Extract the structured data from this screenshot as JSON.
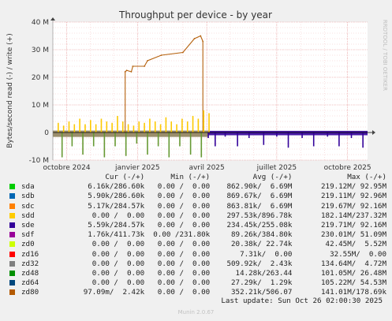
{
  "chart_data": {
    "type": "line",
    "title": "Throughput per device - by year",
    "ylabel": "Bytes/second read (-) / write (+)",
    "side_label": "RRDTOOL / TOBI OETIKER",
    "ylim": [
      -10,
      40
    ],
    "yticks": [
      -10,
      0,
      10,
      20,
      30,
      40
    ],
    "ytick_labels": [
      "-10 M",
      "0",
      "10 M",
      "20 M",
      "30 M",
      "40 M"
    ],
    "xlim": [
      "2024-09-13",
      "2025-10-27"
    ],
    "xticks": [
      "2024-10-01",
      "2025-01-01",
      "2025-04-01",
      "2025-07-01",
      "2025-10-01"
    ],
    "xtick_labels": [
      "octobre 2024",
      "janvier 2025",
      "avril 2025",
      "juillet 2025",
      "octobre 2025"
    ],
    "grid": true,
    "series": [
      {
        "name": "zd80",
        "color": "#B5610D",
        "kind": "plateau",
        "x": [
          "2024-12-16",
          "2024-12-18",
          "2024-12-24",
          "2024-12-26",
          "2025-01-10",
          "2025-01-14",
          "2025-02-01",
          "2025-03-01",
          "2025-03-16",
          "2025-03-24",
          "2025-03-27"
        ],
        "values": [
          22,
          22.5,
          22,
          24,
          24,
          26,
          28,
          29,
          34,
          35,
          33
        ]
      },
      {
        "name": "sdd",
        "color": "#FCC900",
        "kind": "spikes",
        "x": [
          "2024-09-20",
          "2024-09-27",
          "2024-10-04",
          "2024-10-11",
          "2024-10-18",
          "2024-10-25",
          "2024-11-01",
          "2024-11-08",
          "2024-11-15",
          "2024-11-22",
          "2024-11-29",
          "2024-12-06",
          "2024-12-13",
          "2024-12-20",
          "2024-12-27",
          "2025-01-03",
          "2025-01-10",
          "2025-01-17",
          "2025-01-24",
          "2025-01-31",
          "2025-02-07",
          "2025-02-14",
          "2025-02-21",
          "2025-02-28",
          "2025-03-07",
          "2025-03-14",
          "2025-03-21",
          "2025-03-28",
          "2025-04-04"
        ],
        "values": [
          3.5,
          2.5,
          4,
          3,
          5,
          3,
          4.5,
          3,
          5,
          4,
          3.5,
          6,
          4,
          3,
          2.5,
          4,
          3.5,
          5,
          4,
          3,
          5.5,
          4,
          3,
          5,
          4,
          6,
          5,
          8,
          7
        ]
      },
      {
        "name": "sde",
        "color": "#330099",
        "kind": "dips",
        "x": [
          "2025-04-03",
          "2025-04-12",
          "2025-04-25",
          "2025-05-11",
          "2025-05-26",
          "2025-06-14",
          "2025-07-01",
          "2025-07-16",
          "2025-08-03",
          "2025-08-18",
          "2025-09-05",
          "2025-09-20",
          "2025-10-06",
          "2025-10-21"
        ],
        "values": [
          -2,
          -5,
          -1.5,
          -5,
          -2,
          -4.5,
          -1.5,
          -5.5,
          -2,
          -5,
          -1.5,
          -5,
          -2,
          -5.5
        ]
      },
      {
        "name": "zd48",
        "color": "#669933",
        "kind": "dips",
        "x": [
          "2024-09-25",
          "2024-10-08",
          "2024-10-22",
          "2024-11-05",
          "2024-11-19",
          "2024-12-03",
          "2024-12-17",
          "2024-12-31",
          "2025-01-14",
          "2025-01-28",
          "2025-02-11",
          "2025-02-25",
          "2025-03-11",
          "2025-03-25"
        ],
        "values": [
          -9,
          -5,
          -8,
          -5,
          -9,
          -5,
          -8.5,
          -4,
          -8,
          -5,
          -9,
          -5,
          -8,
          -9
        ]
      }
    ],
    "legend_headers": [
      "Cur (-/+)",
      "Min (-/+)",
      "Avg (-/+)",
      "Max (-/+)"
    ],
    "legend": [
      {
        "name": "sda",
        "color": "#00CC00",
        "cur": "6.16k/286.60k",
        "min": "0.00 /  0.00",
        "avg": "862.90k/  6.69M",
        "max": "219.12M/ 92.95M"
      },
      {
        "name": "sdb",
        "color": "#0066B3",
        "cur": "5.90k/286.60k",
        "min": "0.00 /  0.00",
        "avg": "869.67k/  6.69M",
        "max": "219.11M/ 92.96M"
      },
      {
        "name": "sdc",
        "color": "#FF8000",
        "cur": "5.17k/284.57k",
        "min": "0.00 /  0.00",
        "avg": "863.81k/  6.69M",
        "max": "219.67M/ 92.16M"
      },
      {
        "name": "sdd",
        "color": "#FFCC00",
        "cur": "0.00 /  0.00",
        "min": "0.00 /  0.00",
        "avg": "297.53k/896.78k",
        "max": "182.14M/237.32M"
      },
      {
        "name": "sde",
        "color": "#330099",
        "cur": "5.59k/284.57k",
        "min": "0.00 /  0.00",
        "avg": "234.45k/255.08k",
        "max": "219.71M/ 92.16M"
      },
      {
        "name": "sdf",
        "color": "#990099",
        "cur": "1.76k/411.73k",
        "min": "0.00 /231.80k",
        "avg": "89.26k/384.80k",
        "max": "230.01M/ 51.09M"
      },
      {
        "name": "zd0",
        "color": "#CCFF00",
        "cur": "0.00 /  0.00",
        "min": "0.00 /  0.00",
        "avg": "20.38k/ 22.74k",
        "max": "42.45M/  5.52M"
      },
      {
        "name": "zd16",
        "color": "#FF0000",
        "cur": "0.00 /  0.00",
        "min": "0.00 /  0.00",
        "avg": "7.31k/  0.00",
        "max": "32.55M/  0.00"
      },
      {
        "name": "zd32",
        "color": "#808080",
        "cur": "0.00 /  0.00",
        "min": "0.00 /  0.00",
        "avg": "509.92k/  2.43k",
        "max": "134.64M/  4.72M"
      },
      {
        "name": "zd48",
        "color": "#008F00",
        "cur": "0.00 /  0.00",
        "min": "0.00 /  0.00",
        "avg": "14.28k/263.44",
        "max": "101.05M/ 26.48M"
      },
      {
        "name": "zd64",
        "color": "#00487D",
        "cur": "0.00 /  0.00",
        "min": "0.00 /  0.00",
        "avg": "27.29k/  1.29k",
        "max": "105.22M/ 54.53M"
      },
      {
        "name": "zd80",
        "color": "#B35A00",
        "cur": "97.09m/  2.42k",
        "min": "0.00 /  0.00",
        "avg": "352.21k/506.07",
        "max": "141.01M/178.69k"
      }
    ]
  },
  "footer": {
    "last_update": "Last update: Sun Oct 26 02:00:30 2025",
    "version": "Munin 2.0.67"
  }
}
